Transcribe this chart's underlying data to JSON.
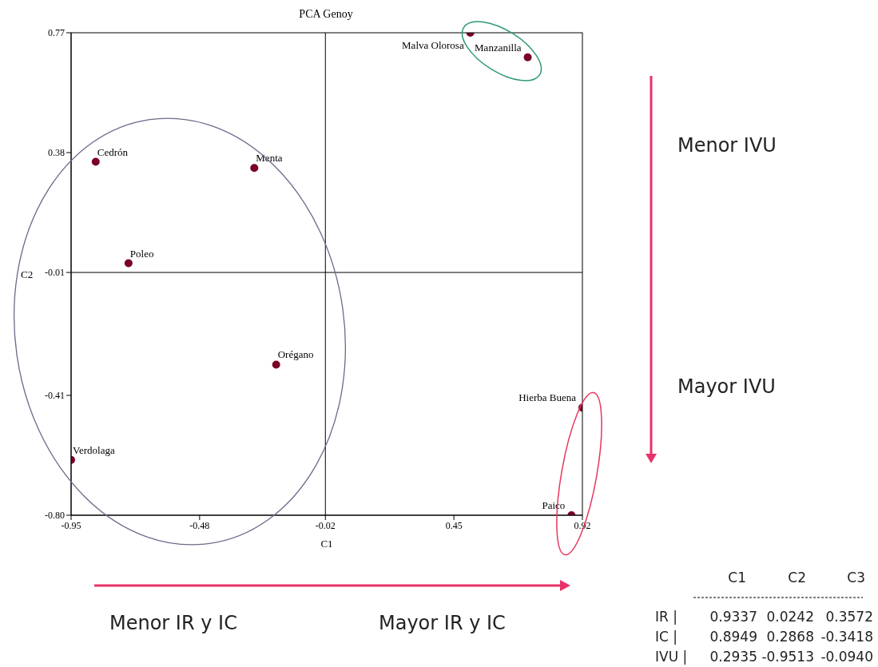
{
  "chart_data": {
    "type": "scatter",
    "title": "PCA Genoy",
    "xlabel": "C1",
    "ylabel": "C2",
    "xlim": [
      -0.95,
      0.92
    ],
    "ylim": [
      -0.8,
      0.77
    ],
    "xticks": [
      -0.95,
      -0.48,
      -0.02,
      0.45,
      0.92
    ],
    "yticks": [
      {
        "value": -0.8,
        "label": "-0.80"
      },
      -0.41,
      -0.01,
      0.38,
      0.77
    ],
    "grid": false,
    "legend": false,
    "marker": "circle",
    "ref_lines": [
      {
        "axis": "x",
        "value": -0.02,
        "color": "#000000"
      },
      {
        "axis": "y",
        "value": -0.01,
        "color": "#000000"
      }
    ],
    "series": [
      {
        "name": "Malva Olorosa",
        "color": "#7a0026",
        "x": [
          0.51
        ],
        "values": [
          0.77
        ]
      },
      {
        "name": "Manzanilla",
        "color": "#7a0026",
        "x": [
          0.72
        ],
        "values": [
          0.69
        ]
      },
      {
        "name": "Cedrón",
        "color": "#7a0026",
        "x": [
          -0.86
        ],
        "values": [
          0.35
        ]
      },
      {
        "name": "Menta",
        "color": "#7a0026",
        "x": [
          -0.28
        ],
        "values": [
          0.33
        ]
      },
      {
        "name": "Poleo",
        "color": "#7a0026",
        "x": [
          -0.74
        ],
        "values": [
          0.02
        ]
      },
      {
        "name": "Orégano",
        "color": "#7a0026",
        "x": [
          -0.2
        ],
        "values": [
          -0.31
        ]
      },
      {
        "name": "Verdolaga",
        "color": "#7a0026",
        "x": [
          -0.95
        ],
        "values": [
          -0.62
        ]
      },
      {
        "name": "Hierba Buena",
        "color": "#7a0026",
        "x": [
          0.92
        ],
        "values": [
          -0.45
        ]
      },
      {
        "name": "Paico",
        "color": "#7a0026",
        "x": [
          0.88
        ],
        "values": [
          -0.8
        ]
      }
    ],
    "annotations": [
      "Menor IVU",
      "Mayor IVU",
      "Menor IR y IC",
      "Mayor IR y IC",
      "C1 C2 C3",
      "IR | 0.9337 0.0242 0.3572",
      "IC | 0.8949 0.2868 -0.3418",
      "IVU | 0.2935 -0.9513 -0.0940"
    ]
  }
}
